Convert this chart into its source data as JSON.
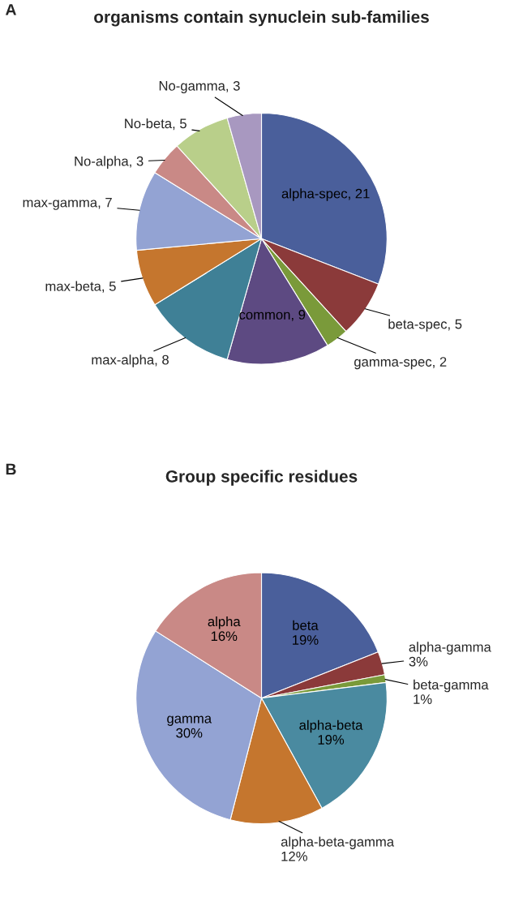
{
  "chart_data": [
    {
      "type": "pie",
      "title": "organisms contain synuclein sub-families",
      "annotations": [
        "A"
      ],
      "categories": [
        "alpha-spec",
        "beta-spec",
        "gamma-spec",
        "common",
        "max-alpha",
        "max-beta",
        "max-gamma",
        "No-alpha",
        "No-beta",
        "No-gamma"
      ],
      "values": [
        21,
        5,
        2,
        9,
        8,
        5,
        7,
        3,
        5,
        3
      ],
      "colors": [
        "#4a5f9b",
        "#8b3a3a",
        "#7a9a3a",
        "#5d4a82",
        "#3f8096",
        "#c5762e",
        "#93a3d3",
        "#c98986",
        "#b9cf8a",
        "#a898c0"
      ],
      "value_labels": [
        "21",
        "5",
        "2",
        "9",
        "8",
        "5",
        "7",
        "3",
        "5",
        "3"
      ]
    },
    {
      "type": "pie",
      "title": "Group specific residues",
      "annotations": [
        "B"
      ],
      "categories": [
        "beta",
        "alpha-gamma",
        "beta-gamma",
        "alpha-beta",
        "alpha-beta-gamma",
        "gamma",
        "alpha"
      ],
      "values": [
        19,
        3,
        1,
        19,
        12,
        30,
        16
      ],
      "colors": [
        "#4a5f9b",
        "#8b3a3a",
        "#7a9a3a",
        "#4a8aa0",
        "#c5762e",
        "#93a3d3",
        "#c98986"
      ],
      "value_labels": [
        "19%",
        "3%",
        "1%",
        "19%",
        "12%",
        "30%",
        "16%"
      ]
    }
  ]
}
